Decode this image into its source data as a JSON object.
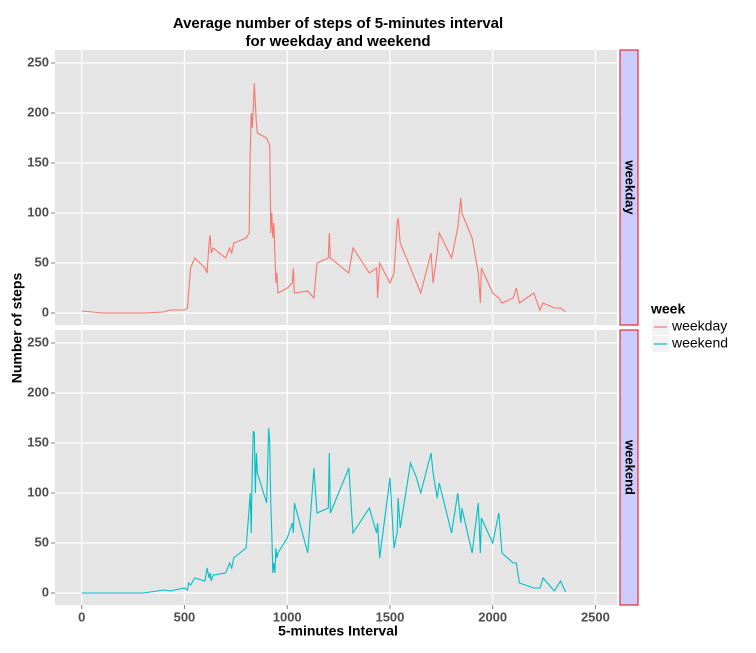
{
  "chart_data": {
    "type": "line",
    "title": [
      "Average number of steps of 5-minutes interval",
      "for weekday and weekend"
    ],
    "x_label": "5-minutes Interval",
    "y_label": "Number of steps",
    "legend_title": "week",
    "x": [
      0,
      100,
      200,
      300,
      400,
      430,
      500,
      515,
      520,
      530,
      550,
      600,
      610,
      620,
      625,
      630,
      640,
      700,
      720,
      730,
      740,
      800,
      815,
      820,
      825,
      830,
      835,
      840,
      845,
      850,
      855,
      900,
      910,
      915,
      920,
      925,
      930,
      935,
      940,
      945,
      950,
      955,
      1000,
      1025,
      1030,
      1035,
      1100,
      1130,
      1145,
      1200,
      1205,
      1210,
      1300,
      1320,
      1400,
      1435,
      1440,
      1450,
      1500,
      1520,
      1535,
      1540,
      1550,
      1600,
      1630,
      1650,
      1700,
      1710,
      1730,
      1740,
      1800,
      1830,
      1845,
      1850,
      1900,
      1930,
      1940,
      1945,
      2000,
      2030,
      2045,
      2100,
      2115,
      2130,
      2200,
      2230,
      2245,
      2300,
      2330,
      2355
    ],
    "series": [
      {
        "name": "weekday",
        "color": "#F8766D",
        "values": [
          2,
          0,
          0,
          0,
          1,
          3,
          3,
          5,
          20,
          45,
          55,
          45,
          40,
          70,
          78,
          60,
          65,
          55,
          65,
          60,
          70,
          75,
          80,
          160,
          200,
          185,
          205,
          230,
          210,
          190,
          180,
          175,
          170,
          168,
          80,
          100,
          75,
          90,
          60,
          30,
          40,
          20,
          25,
          30,
          45,
          20,
          22,
          15,
          50,
          55,
          80,
          55,
          40,
          65,
          40,
          45,
          15,
          50,
          30,
          40,
          90,
          95,
          70,
          45,
          30,
          20,
          60,
          30,
          60,
          80,
          55,
          85,
          115,
          100,
          75,
          40,
          10,
          45,
          20,
          15,
          10,
          15,
          25,
          10,
          20,
          3,
          10,
          5,
          5,
          1
        ]
      },
      {
        "name": "weekend",
        "color": "#00BFC4",
        "values": [
          0,
          0,
          0,
          0,
          3,
          2,
          5,
          3,
          10,
          8,
          15,
          12,
          25,
          15,
          20,
          12,
          18,
          20,
          30,
          25,
          35,
          45,
          85,
          100,
          60,
          125,
          162,
          160,
          100,
          140,
          120,
          90,
          165,
          150,
          90,
          60,
          20,
          30,
          20,
          45,
          35,
          40,
          55,
          70,
          60,
          90,
          40,
          125,
          80,
          85,
          140,
          80,
          125,
          60,
          85,
          60,
          70,
          35,
          115,
          45,
          60,
          95,
          65,
          130,
          115,
          100,
          140,
          120,
          95,
          110,
          60,
          100,
          70,
          85,
          40,
          90,
          40,
          75,
          50,
          80,
          40,
          30,
          30,
          10,
          5,
          5,
          15,
          2,
          12,
          1
        ]
      }
    ],
    "xlim": [
      -130,
      2605
    ],
    "ylim": [
      -12,
      263
    ],
    "xticks": [
      0,
      500,
      1000,
      1500,
      2000,
      2500
    ],
    "yticks": [
      0,
      50,
      100,
      150,
      200,
      250
    ],
    "grid": true
  }
}
